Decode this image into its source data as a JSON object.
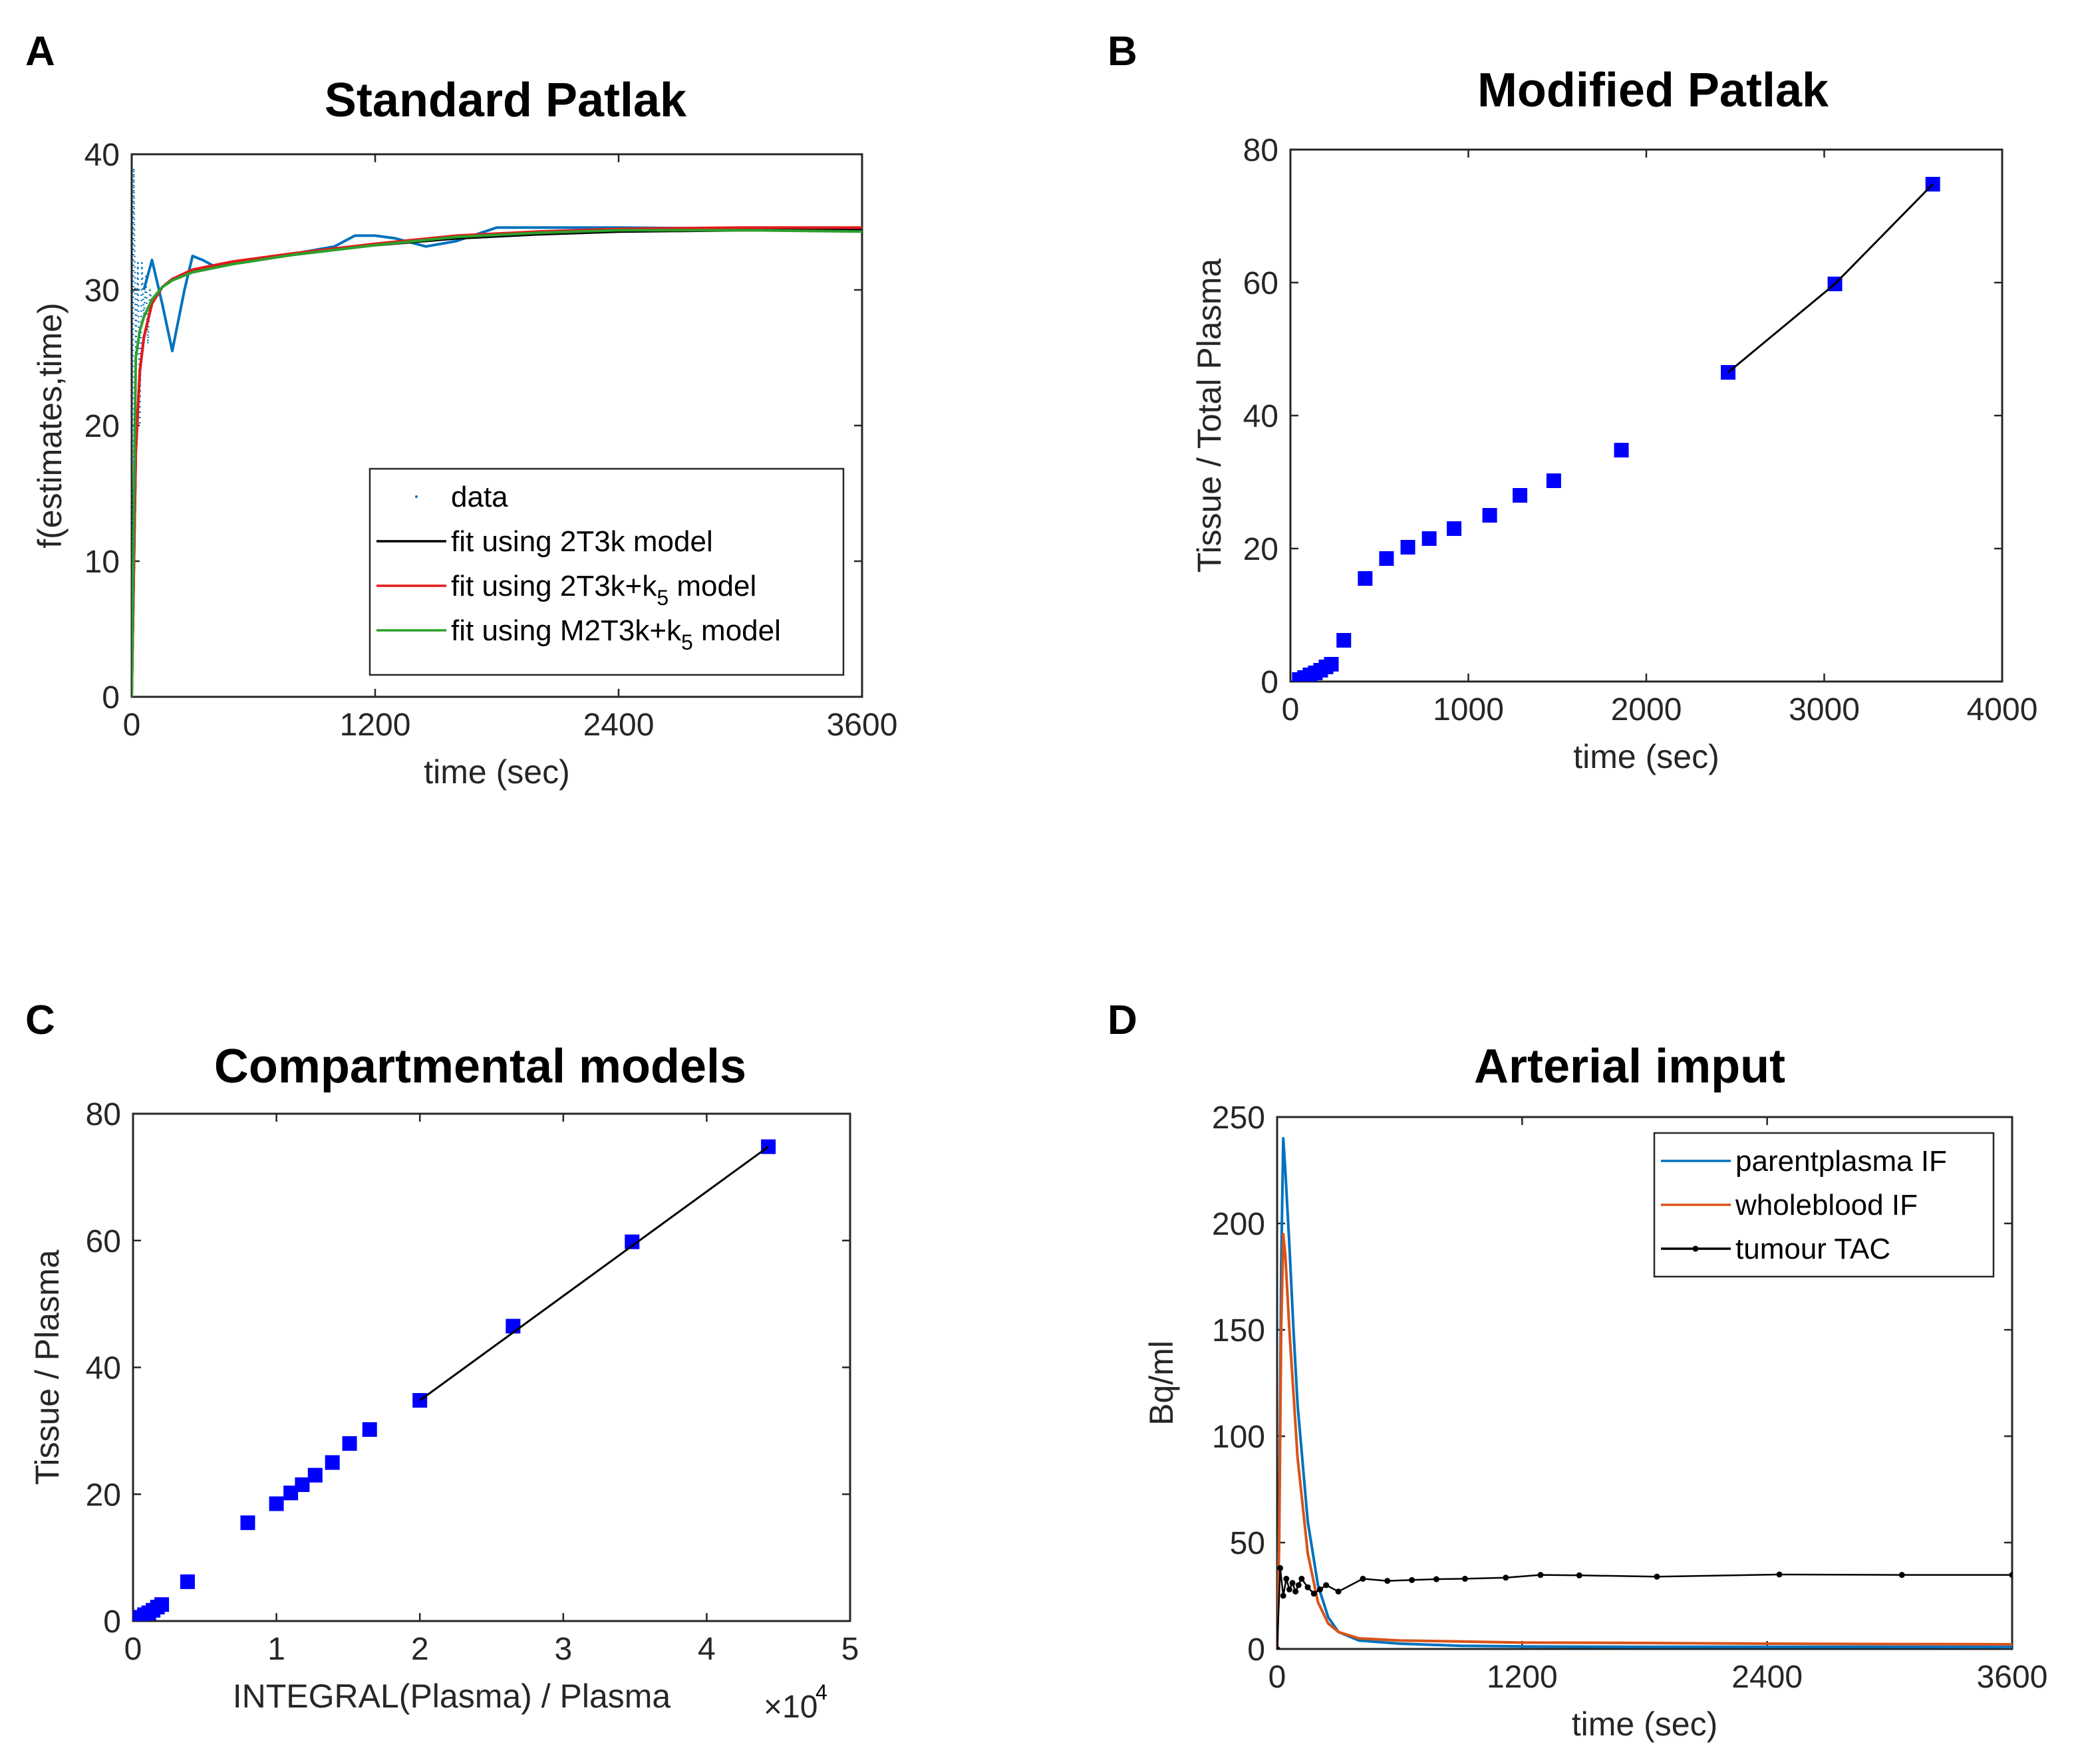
{
  "panels": {
    "A": {
      "letter": "A"
    },
    "B": {
      "letter": "B"
    },
    "C": {
      "letter": "C"
    },
    "D": {
      "letter": "D"
    }
  },
  "chart_data": [
    {
      "id": "A",
      "type": "line",
      "title": "Standard Patlak",
      "xlabel": "time (sec)",
      "ylabel": "f(estimates,time)",
      "xlim": [
        0,
        3600
      ],
      "ylim": [
        0,
        40
      ],
      "xticks": [
        0,
        1200,
        2400,
        3600
      ],
      "yticks": [
        0,
        10,
        20,
        30,
        40
      ],
      "legend_position": "bottom-right",
      "series": [
        {
          "name": "data",
          "color": "#0072bd",
          "style": "dotted",
          "x": [
            0,
            10,
            20,
            30,
            40,
            50,
            60,
            70,
            80,
            90,
            100
          ],
          "y": [
            0,
            39,
            25,
            32,
            20,
            32,
            28,
            31,
            26,
            30,
            29
          ]
        },
        {
          "name": "data-line",
          "color": "#0072bd",
          "style": "solid",
          "x": [
            60,
            100,
            150,
            200,
            260,
            300,
            350,
            400,
            500,
            700,
            1000,
            1100,
            1200,
            1300,
            1450,
            1600,
            1800,
            2400,
            3000,
            3600
          ],
          "y": [
            30,
            32.2,
            29,
            25.5,
            30,
            32.5,
            32.2,
            31.8,
            32,
            32.4,
            33.2,
            34,
            34,
            33.8,
            33.2,
            33.6,
            34.6,
            34.6,
            34.5,
            34.5
          ]
        },
        {
          "name": "fit using 2T3k model",
          "color": "#000000",
          "style": "solid",
          "x": [
            0,
            20,
            40,
            60,
            100,
            150,
            200,
            300,
            500,
            800,
            1200,
            1600,
            2000,
            2400,
            3000,
            3600
          ],
          "y": [
            0,
            18,
            24,
            26.5,
            29,
            30.2,
            30.8,
            31.4,
            32,
            32.6,
            33.3,
            33.8,
            34.1,
            34.3,
            34.4,
            34.4
          ]
        },
        {
          "name": "fit using 2T3k+k",
          "color": "#e41a1c",
          "style": "solid",
          "x": [
            0,
            20,
            40,
            60,
            100,
            150,
            200,
            300,
            500,
            800,
            1200,
            1600,
            2000,
            2400,
            3000,
            3600
          ],
          "y": [
            0,
            18,
            24,
            26.5,
            29,
            30.2,
            30.8,
            31.5,
            32.1,
            32.7,
            33.4,
            34,
            34.3,
            34.5,
            34.6,
            34.6
          ]
        },
        {
          "name": "fit using M2T3k+k",
          "color": "#2ca02c",
          "style": "solid",
          "x": [
            0,
            20,
            40,
            60,
            100,
            150,
            200,
            300,
            500,
            800,
            1200,
            1600,
            2000,
            2400,
            3000,
            3600
          ],
          "y": [
            0,
            25,
            27,
            28,
            29.3,
            30.2,
            30.7,
            31.3,
            31.9,
            32.6,
            33.3,
            33.9,
            34.2,
            34.4,
            34.4,
            34.3
          ]
        }
      ],
      "legend": [
        {
          "label": "data",
          "sub": "",
          "suffix": "",
          "color": "#0072bd",
          "style": "dot"
        },
        {
          "label": "fit using 2T3k model",
          "sub": "",
          "suffix": "",
          "color": "#000000",
          "style": "line"
        },
        {
          "label": "fit using 2T3k+k",
          "sub": "5",
          "suffix": " model",
          "color": "#e41a1c",
          "style": "line"
        },
        {
          "label": "fit using M2T3k+k",
          "sub": "5",
          "suffix": " model",
          "color": "#2ca02c",
          "style": "line"
        }
      ]
    },
    {
      "id": "B",
      "type": "scatter",
      "title": "Modified Patlak",
      "xlabel": "time  (sec)",
      "ylabel": "Tissue / Total Plasma",
      "xlim": [
        0,
        4000
      ],
      "ylim": [
        0,
        80
      ],
      "xticks": [
        0,
        1000,
        2000,
        3000,
        4000
      ],
      "yticks": [
        0,
        20,
        40,
        60,
        80
      ],
      "series": [
        {
          "name": "points",
          "color": "#0000ff",
          "x": [
            50,
            80,
            110,
            140,
            170,
            200,
            230,
            300,
            420,
            540,
            660,
            780,
            920,
            1120,
            1290,
            1480,
            1860,
            2460,
            3060,
            3610
          ],
          "y": [
            0.3,
            0.6,
            1.0,
            1.3,
            1.7,
            2.2,
            2.6,
            6.2,
            15.5,
            18.5,
            20.2,
            21.5,
            23,
            25,
            28,
            30.2,
            34.8,
            46.5,
            59.8,
            74.8
          ]
        },
        {
          "name": "fit",
          "color": "#000000",
          "x": [
            2460,
            3060,
            3610
          ],
          "y": [
            46.5,
            59.8,
            74.8
          ]
        }
      ]
    },
    {
      "id": "C",
      "type": "scatter",
      "title": "Compartmental models",
      "xlabel": "INTEGRAL(Plasma) / Plasma",
      "xexponent_base": "×10",
      "xexponent_power": "4",
      "ylabel": "Tissue / Plasma",
      "xlim": [
        0,
        5
      ],
      "ylim": [
        0,
        80
      ],
      "xticks": [
        0,
        1,
        2,
        3,
        4,
        5
      ],
      "yticks": [
        0,
        20,
        40,
        60,
        80
      ],
      "series": [
        {
          "name": "points",
          "color": "#0000ff",
          "x": [
            0.02,
            0.05,
            0.08,
            0.11,
            0.14,
            0.17,
            0.2,
            0.38,
            0.8,
            1.0,
            1.1,
            1.18,
            1.27,
            1.39,
            1.51,
            1.65,
            2.0,
            2.65,
            3.48,
            4.43
          ],
          "y": [
            0.3,
            0.6,
            1.0,
            1.3,
            1.7,
            2.2,
            2.6,
            6.2,
            15.5,
            18.5,
            20.2,
            21.5,
            23,
            25,
            28,
            30.2,
            34.8,
            46.5,
            59.8,
            74.8
          ]
        },
        {
          "name": "fit",
          "color": "#000000",
          "x": [
            2.0,
            4.43
          ],
          "y": [
            34.8,
            74.8
          ]
        }
      ]
    },
    {
      "id": "D",
      "type": "line",
      "title": "Arterial imput",
      "xlabel": "time (sec)",
      "ylabel": "Bq/ml",
      "xlim": [
        0,
        3600
      ],
      "ylim": [
        0,
        250
      ],
      "xticks": [
        0,
        1200,
        2400,
        3600
      ],
      "yticks": [
        0,
        50,
        100,
        150,
        200,
        250
      ],
      "legend_position": "top-right",
      "series": [
        {
          "name": "parentplasma IF",
          "color": "#0072bd",
          "style": "solid",
          "x": [
            0,
            10,
            20,
            30,
            40,
            60,
            80,
            100,
            150,
            200,
            250,
            300,
            400,
            600,
            900,
            1200,
            1800,
            2400,
            3000,
            3600
          ],
          "y": [
            0,
            60,
            180,
            240,
            225,
            190,
            150,
            115,
            60,
            30,
            15,
            8,
            4,
            2.5,
            1.5,
            1.2,
            1,
            1,
            1,
            0.9
          ]
        },
        {
          "name": "wholeblood IF",
          "color": "#d95319",
          "style": "solid",
          "x": [
            0,
            10,
            20,
            30,
            40,
            60,
            80,
            100,
            150,
            200,
            250,
            300,
            400,
            600,
            900,
            1200,
            1800,
            2400,
            3000,
            3600
          ],
          "y": [
            0,
            50,
            150,
            195,
            185,
            150,
            120,
            90,
            45,
            22,
            12,
            8,
            5,
            4,
            3.5,
            3,
            2.8,
            2.5,
            2.3,
            2.2
          ]
        },
        {
          "name": "tumour TAC",
          "color": "#000000",
          "style": "marker",
          "x": [
            0,
            15,
            30,
            45,
            60,
            75,
            90,
            105,
            120,
            150,
            180,
            210,
            240,
            300,
            420,
            540,
            660,
            780,
            920,
            1120,
            1290,
            1480,
            1860,
            2460,
            3060,
            3600
          ],
          "y": [
            0,
            38,
            25,
            33,
            28,
            31,
            27,
            30,
            33,
            29,
            26,
            28,
            30,
            27,
            33,
            32,
            32.4,
            32.8,
            33,
            33.5,
            34.8,
            34.6,
            34,
            35,
            34.8,
            34.8
          ]
        }
      ],
      "legend": [
        {
          "label": "parentplasma IF",
          "color": "#0072bd",
          "style": "line"
        },
        {
          "label": "wholeblood IF",
          "color": "#d95319",
          "style": "line"
        },
        {
          "label": "tumour TAC",
          "color": "#000000",
          "style": "marker"
        }
      ]
    }
  ]
}
